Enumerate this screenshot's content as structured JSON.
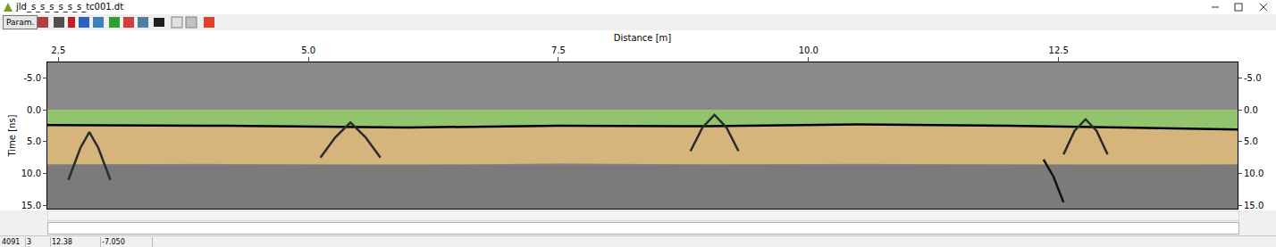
{
  "window": {
    "title": "jld_s_s_s_s_s_s_tc001.dt",
    "button": "Param."
  },
  "chart_data": {
    "type": "radargram",
    "xlabel": "Distance [m]",
    "ylabel": "Time [ns]",
    "xlim": [
      2.39,
      14.29
    ],
    "ylim": [
      15.5,
      -7.4
    ],
    "xticks": [
      2.5,
      {
        "value": 5,
        "label": "5.0"
      },
      7.5,
      {
        "value": 10,
        "label": "10.0"
      },
      12.5
    ],
    "yticks": [
      {
        "value": -5,
        "label": "-5.0"
      },
      {
        "value": 0,
        "label": "0.0"
      },
      {
        "value": 5,
        "label": "5.0"
      },
      {
        "value": 10,
        "label": "10.0"
      },
      {
        "value": 15,
        "label": "15.0"
      }
    ],
    "layers": [
      {
        "color": "#92c46e",
        "x": [
          2.39,
          4.0,
          6.0,
          7.5,
          9.0,
          10.5,
          12.0,
          13.5,
          14.29
        ],
        "top": [
          0,
          0,
          0,
          0,
          0,
          0,
          0,
          0,
          0
        ],
        "bottom": [
          2.4,
          2.5,
          2.8,
          2.5,
          2.6,
          2.3,
          2.5,
          2.9,
          3.1
        ]
      },
      {
        "color": "#d6b57c",
        "x": [
          2.39,
          4.0,
          6.0,
          7.5,
          9.0,
          10.5,
          12.0,
          13.5,
          14.29
        ],
        "top": [
          2.4,
          2.5,
          2.8,
          2.5,
          2.6,
          2.3,
          2.5,
          2.9,
          3.1
        ],
        "bottom": [
          8.6,
          8.5,
          8.7,
          8.4,
          8.6,
          8.5,
          8.6,
          8.7,
          8.6
        ]
      },
      {
        "color": "#7b7b7b",
        "x": [
          2.39,
          14.29
        ],
        "top": [
          8.6,
          8.6
        ],
        "bottom": [
          15.5,
          15.5
        ]
      }
    ],
    "series": [
      {
        "type": "line",
        "color": "#000000",
        "line_style": "solid",
        "x": [
          2.39,
          4.0,
          6.0,
          7.5,
          9.0,
          10.5,
          12.0,
          13.5,
          14.29
        ],
        "values": [
          2.4,
          2.5,
          2.8,
          2.5,
          2.6,
          2.3,
          2.5,
          2.9,
          3.1
        ]
      },
      {
        "type": "line",
        "color": "#2b2b2b",
        "line_style": "solid",
        "x": [
          2.6,
          2.72,
          2.81,
          2.9,
          3.02
        ],
        "values": [
          11.0,
          6.0,
          3.5,
          6.0,
          11.0
        ]
      },
      {
        "type": "line",
        "color": "#2b2b2b",
        "line_style": "solid",
        "x": [
          5.12,
          5.27,
          5.42,
          5.57,
          5.72
        ],
        "values": [
          7.5,
          4.3,
          2.0,
          4.3,
          7.5
        ]
      },
      {
        "type": "line",
        "color": "#2b2b2b",
        "line_style": "solid",
        "x": [
          8.82,
          8.94,
          9.06,
          9.18,
          9.3
        ],
        "values": [
          6.5,
          2.8,
          0.8,
          2.8,
          6.5
        ]
      },
      {
        "type": "line",
        "color": "#2b2b2b",
        "line_style": "solid",
        "x": [
          12.55,
          12.66,
          12.77,
          12.88,
          12.99
        ],
        "values": [
          7.0,
          3.3,
          1.5,
          3.3,
          7.0
        ]
      },
      {
        "type": "line",
        "color": "#111111",
        "line_style": "solid",
        "x": [
          12.35,
          12.45,
          12.55
        ],
        "values": [
          7.8,
          10.5,
          14.5
        ]
      }
    ]
  },
  "status_bar": [
    "4091",
    "3",
    "12.38",
    "-7.050"
  ]
}
